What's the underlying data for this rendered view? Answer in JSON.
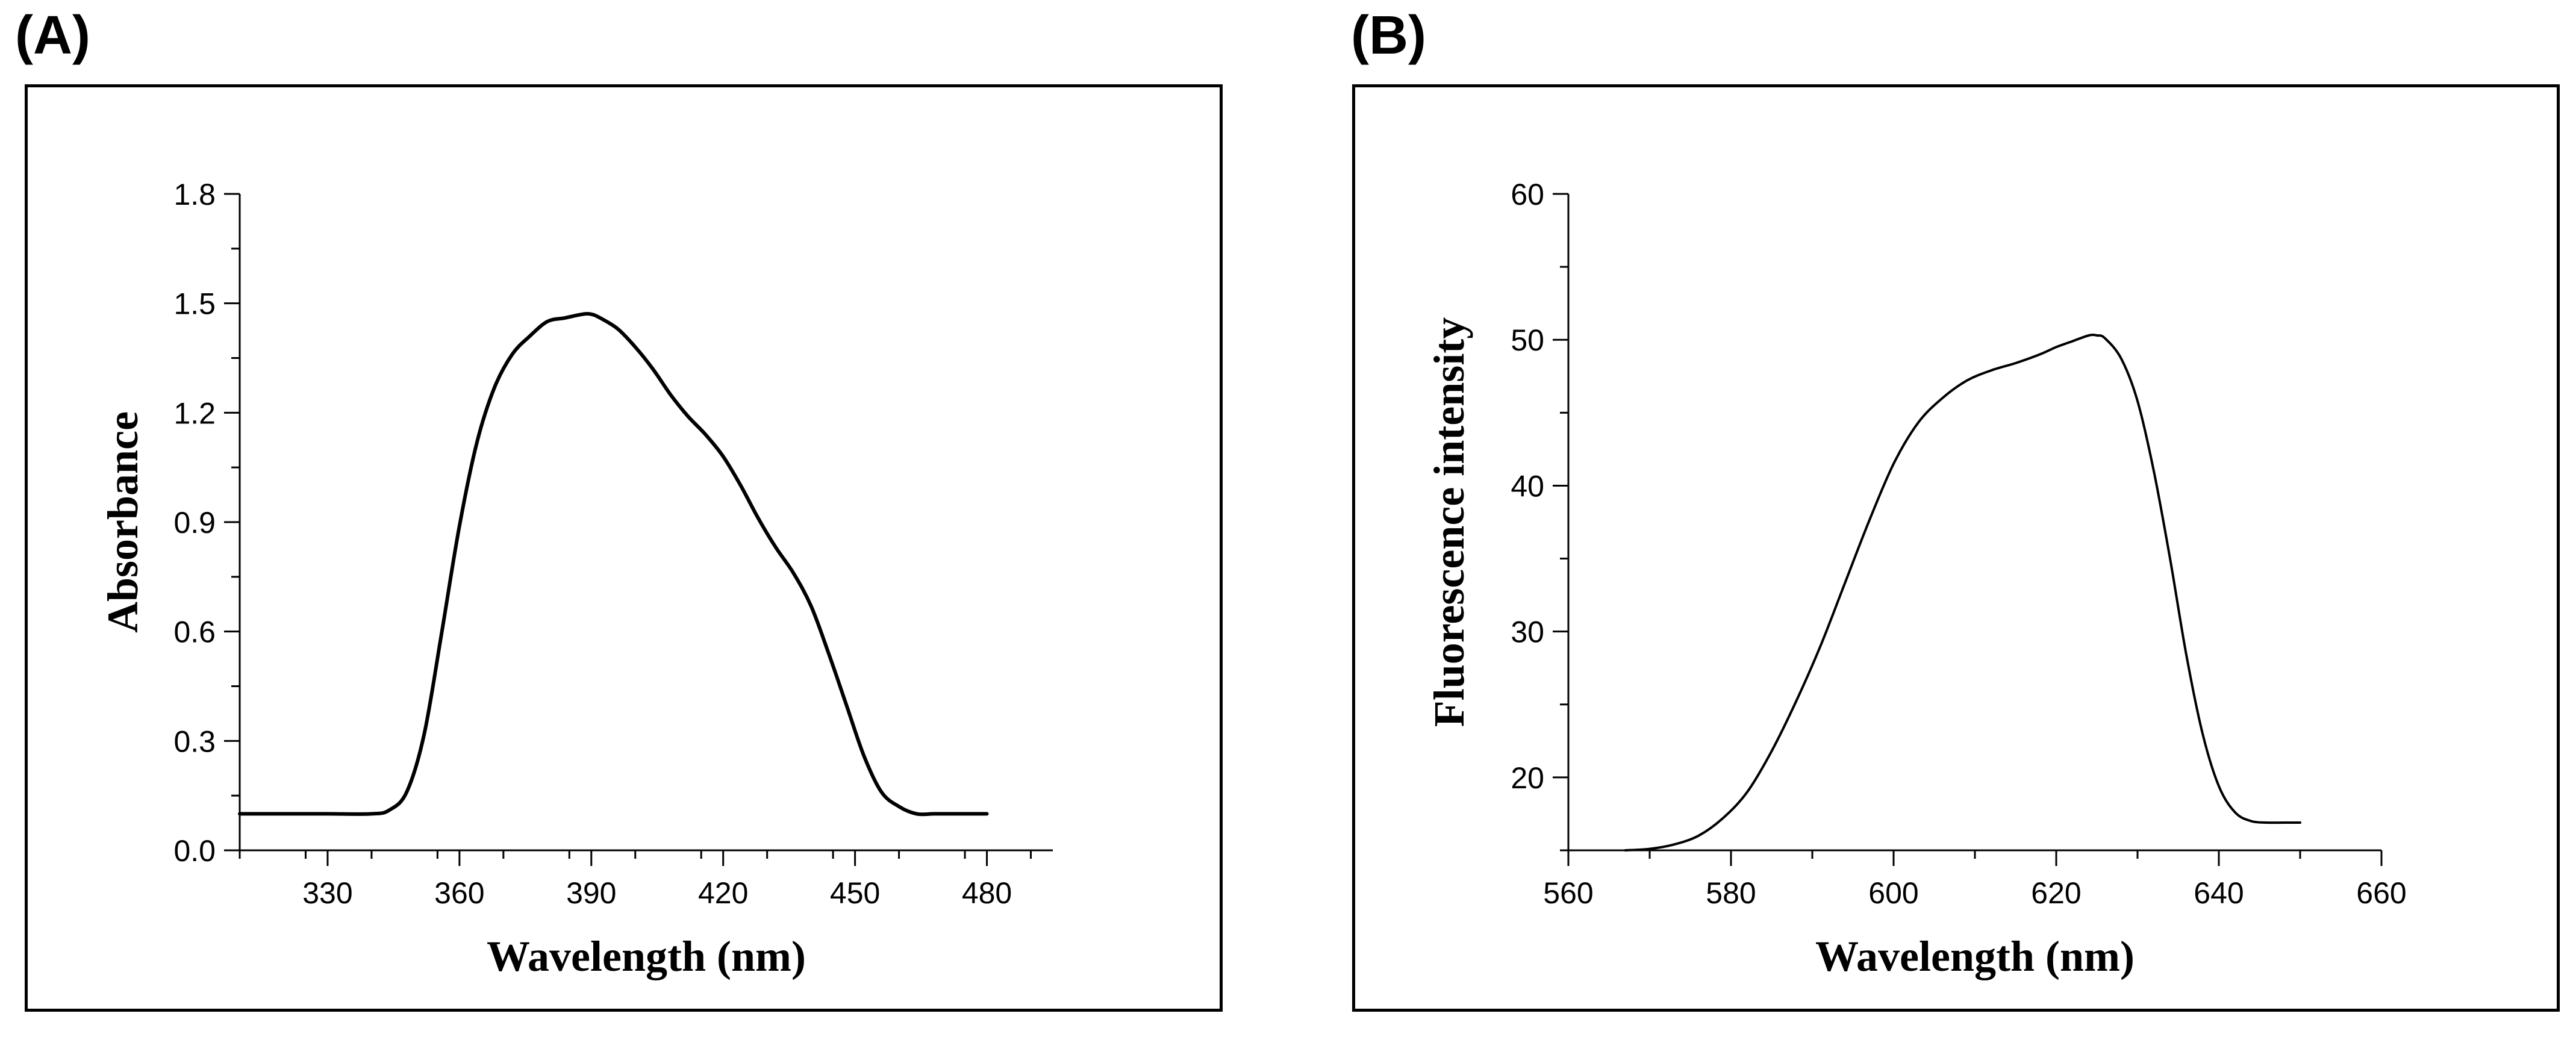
{
  "panels": {
    "a_label": "(A)",
    "b_label": "(B)"
  },
  "chart_data": [
    {
      "type": "line",
      "panel": "(A)",
      "title": "",
      "xlabel": "Wavelength (nm)",
      "ylabel": "Absorbance",
      "xlim": [
        310,
        495
      ],
      "ylim": [
        0,
        1.8
      ],
      "xticks": [
        330,
        360,
        390,
        420,
        450,
        480
      ],
      "yticks": [
        0.0,
        0.3,
        0.6,
        0.9,
        1.2,
        1.5,
        1.8
      ],
      "xtick_labels": [
        "330",
        "360",
        "390",
        "420",
        "450",
        "480"
      ],
      "ytick_labels": [
        "0.0",
        "0.3",
        "0.6",
        "0.9",
        "1.2",
        "1.5",
        "1.8"
      ],
      "line_color": "#000000",
      "series": [
        {
          "name": "Absorbance",
          "x": [
            310,
            320,
            330,
            340,
            344,
            348,
            352,
            356,
            360,
            364,
            368,
            372,
            376,
            380,
            384,
            388,
            390,
            392,
            396,
            400,
            404,
            408,
            412,
            416,
            420,
            424,
            428,
            432,
            436,
            440,
            444,
            448,
            452,
            456,
            460,
            464,
            468,
            472,
            476,
            480
          ],
          "y": [
            0.1,
            0.1,
            0.1,
            0.1,
            0.11,
            0.16,
            0.32,
            0.6,
            0.89,
            1.12,
            1.27,
            1.36,
            1.41,
            1.45,
            1.46,
            1.47,
            1.47,
            1.46,
            1.43,
            1.38,
            1.32,
            1.25,
            1.19,
            1.14,
            1.08,
            1.0,
            0.91,
            0.83,
            0.76,
            0.67,
            0.54,
            0.4,
            0.26,
            0.16,
            0.12,
            0.1,
            0.1,
            0.1,
            0.1,
            0.1
          ]
        }
      ]
    },
    {
      "type": "line",
      "panel": "(B)",
      "title": "",
      "xlabel": "Wavelength (nm)",
      "ylabel": "Fluorescence intensity",
      "xlim": [
        560,
        660
      ],
      "ylim": [
        15,
        60
      ],
      "xticks": [
        560,
        580,
        600,
        620,
        640,
        660
      ],
      "yticks": [
        20,
        30,
        40,
        50,
        60
      ],
      "xtick_labels": [
        "560",
        "580",
        "600",
        "620",
        "640",
        "660"
      ],
      "ytick_labels": [
        "20",
        "30",
        "40",
        "50",
        "60"
      ],
      "line_color": "#000000",
      "series": [
        {
          "name": "Fluorescence",
          "x": [
            567,
            570,
            573,
            576,
            579,
            582,
            585,
            588,
            591,
            594,
            597,
            600,
            603,
            606,
            609,
            612,
            615,
            618,
            620,
            622,
            624,
            625,
            626,
            628,
            630,
            632,
            634,
            636,
            638,
            640,
            642,
            644,
            646,
            648,
            650
          ],
          "y": [
            15.0,
            15.1,
            15.4,
            16.0,
            17.2,
            19.0,
            21.8,
            25.2,
            29.0,
            33.3,
            37.6,
            41.5,
            44.3,
            46.0,
            47.2,
            47.9,
            48.4,
            49.0,
            49.5,
            49.9,
            50.3,
            50.3,
            50.1,
            48.7,
            45.8,
            41.0,
            35.0,
            28.4,
            23.0,
            19.4,
            17.6,
            17.0,
            16.9,
            16.9,
            16.9
          ]
        }
      ]
    }
  ]
}
